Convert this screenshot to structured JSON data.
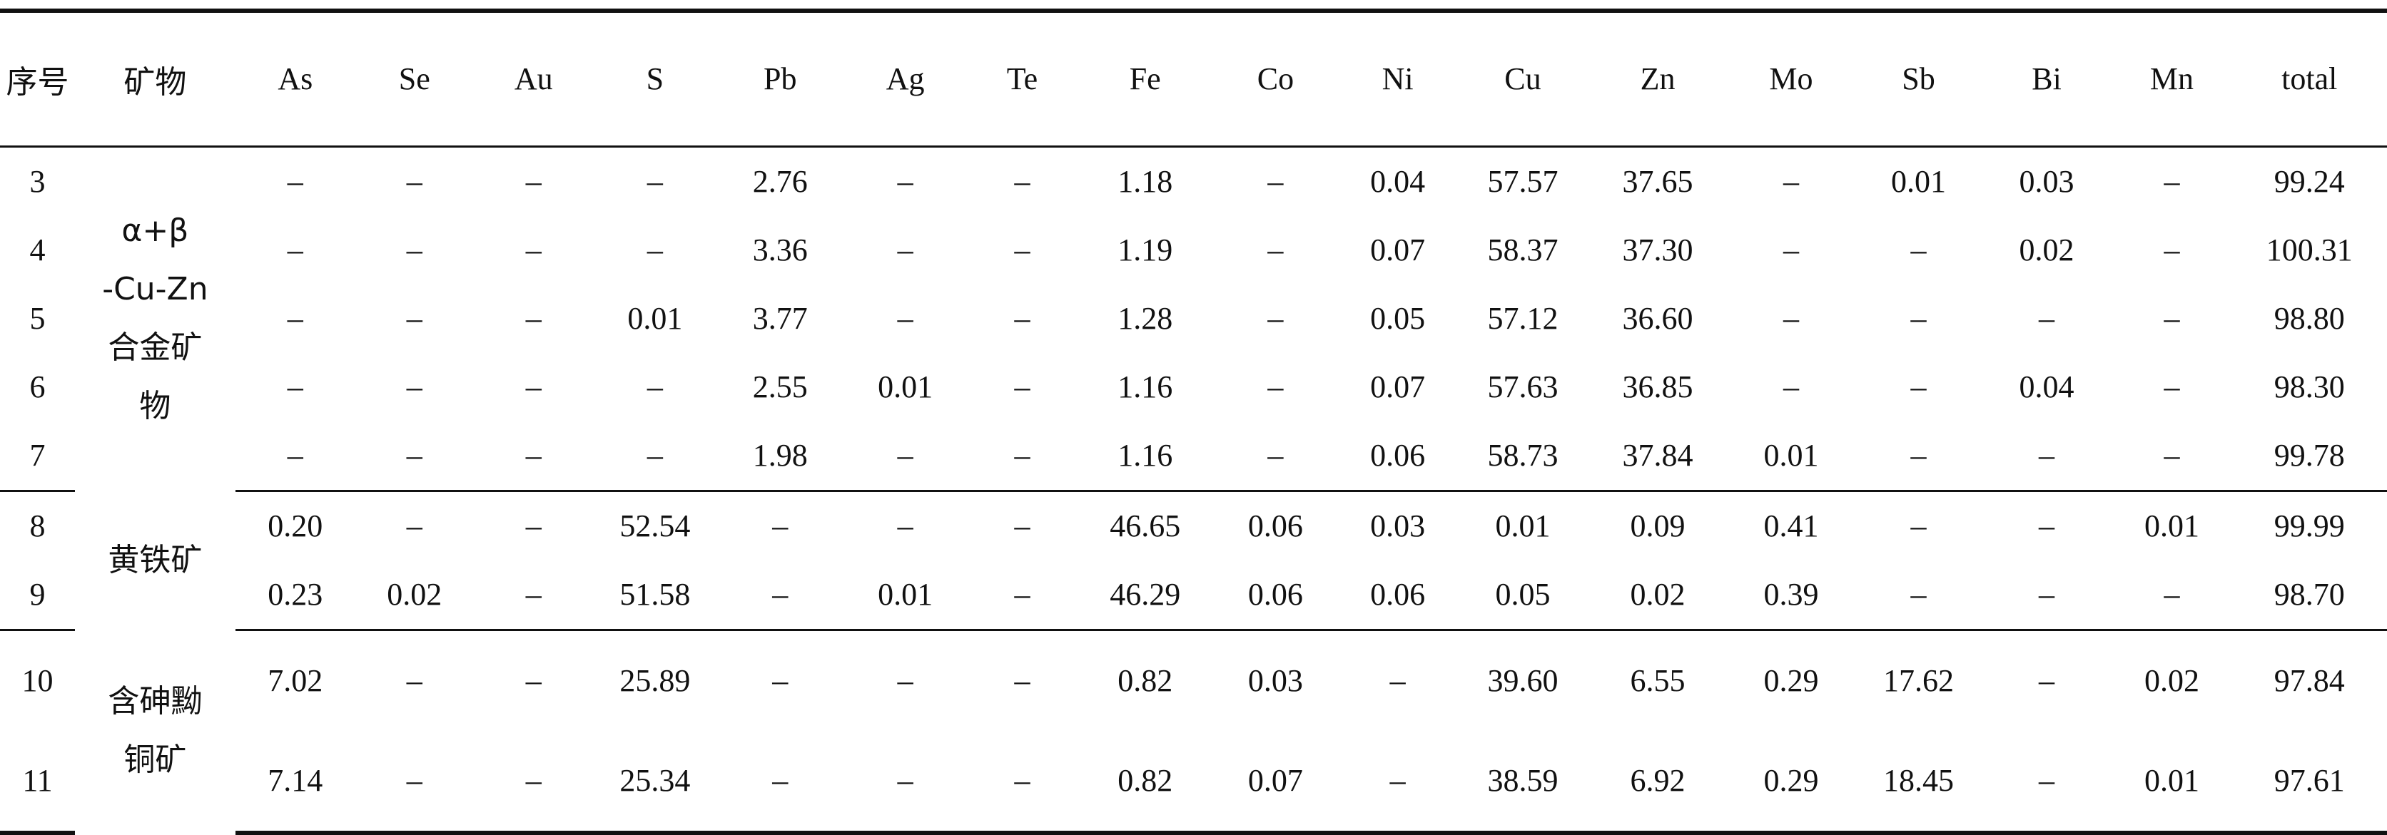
{
  "headers": [
    "序号",
    "矿物",
    "As",
    "Se",
    "Au",
    "S",
    "Pb",
    "Ag",
    "Te",
    "Fe",
    "Co",
    "Ni",
    "Cu",
    "Zn",
    "Mo",
    "Sb",
    "Bi",
    "Mn",
    "total"
  ],
  "groups": [
    {
      "mineral_lines": [
        "α+β",
        "-Cu-Zn",
        "合金矿",
        "物"
      ],
      "rows": [
        [
          "3",
          "–",
          "–",
          "–",
          "–",
          "2.76",
          "–",
          "–",
          "1.18",
          "–",
          "0.04",
          "57.57",
          "37.65",
          "–",
          "0.01",
          "0.03",
          "–",
          "99.24"
        ],
        [
          "4",
          "–",
          "–",
          "–",
          "–",
          "3.36",
          "–",
          "–",
          "1.19",
          "–",
          "0.07",
          "58.37",
          "37.30",
          "–",
          "–",
          "0.02",
          "–",
          "100.31"
        ],
        [
          "5",
          "–",
          "–",
          "–",
          "0.01",
          "3.77",
          "–",
          "–",
          "1.28",
          "–",
          "0.05",
          "57.12",
          "36.60",
          "–",
          "–",
          "–",
          "–",
          "98.80"
        ],
        [
          "6",
          "–",
          "–",
          "–",
          "–",
          "2.55",
          "0.01",
          "–",
          "1.16",
          "–",
          "0.07",
          "57.63",
          "36.85",
          "–",
          "–",
          "0.04",
          "–",
          "98.30"
        ],
        [
          "7",
          "–",
          "–",
          "–",
          "–",
          "1.98",
          "–",
          "–",
          "1.16",
          "–",
          "0.06",
          "58.73",
          "37.84",
          "0.01",
          "–",
          "–",
          "–",
          "99.78"
        ]
      ]
    },
    {
      "mineral_lines": [
        "黄铁矿"
      ],
      "rows": [
        [
          "8",
          "0.20",
          "–",
          "–",
          "52.54",
          "–",
          "–",
          "–",
          "46.65",
          "0.06",
          "0.03",
          "0.01",
          "0.09",
          "0.41",
          "–",
          "–",
          "0.01",
          "99.99"
        ],
        [
          "9",
          "0.23",
          "0.02",
          "–",
          "51.58",
          "–",
          "0.01",
          "–",
          "46.29",
          "0.06",
          "0.06",
          "0.05",
          "0.02",
          "0.39",
          "–",
          "–",
          "–",
          "98.70"
        ]
      ]
    },
    {
      "mineral_lines": [
        "含砷黝",
        "铜矿"
      ],
      "rows": [
        [
          "10",
          "7.02",
          "–",
          "–",
          "25.89",
          "–",
          "–",
          "–",
          "0.82",
          "0.03",
          "–",
          "39.60",
          "6.55",
          "0.29",
          "17.62",
          "–",
          "0.02",
          "97.84"
        ],
        [
          "11",
          "7.14",
          "–",
          "–",
          "25.34",
          "–",
          "–",
          "–",
          "0.82",
          "0.07",
          "–",
          "38.59",
          "6.92",
          "0.29",
          "18.45",
          "–",
          "0.01",
          "97.61"
        ]
      ]
    }
  ]
}
